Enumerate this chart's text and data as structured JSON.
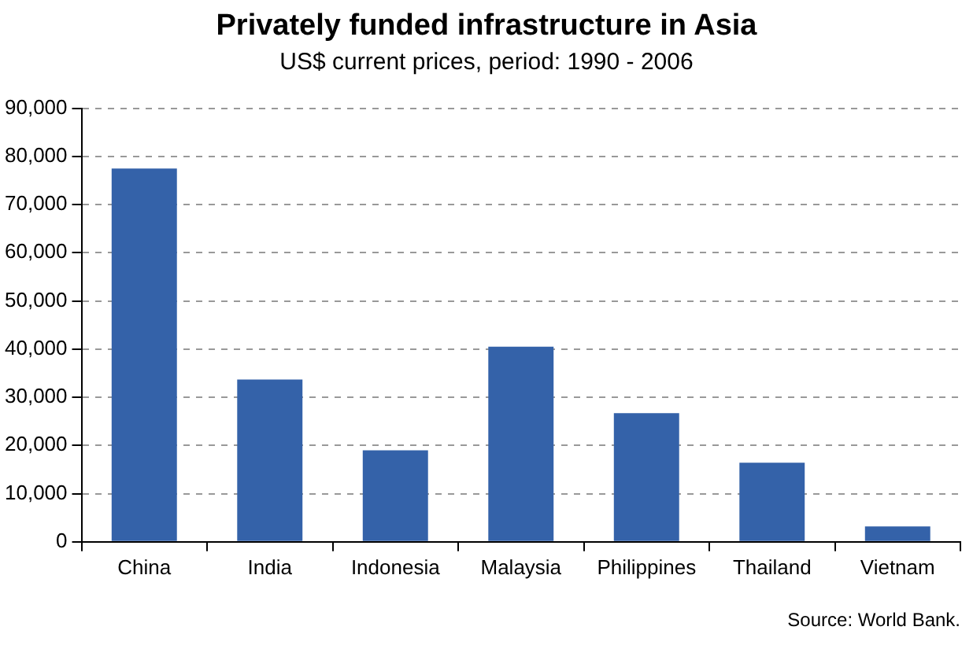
{
  "chart_data": {
    "type": "bar",
    "title": "Privately funded infrastructure in Asia",
    "subtitle": "US$ current prices, period: 1990 - 2006",
    "categories": [
      "China",
      "India",
      "Indonesia",
      "Malaysia",
      "Philippines",
      "Thailand",
      "Vietnam"
    ],
    "values": [
      77500,
      33700,
      19000,
      40500,
      26700,
      16400,
      3200
    ],
    "color": "#3462a9",
    "ylim": [
      0,
      90000
    ],
    "yticks": [
      0,
      {
        "value": 10000,
        "label": "10,000"
      },
      {
        "value": 20000,
        "label": "20,000"
      },
      {
        "value": 30000,
        "label": "30,000"
      },
      {
        "value": 40000,
        "label": "40,000"
      },
      {
        "value": 50000,
        "label": "50,000"
      },
      {
        "value": 60000,
        "label": "60,000"
      },
      {
        "value": 70000,
        "label": "70,000"
      },
      {
        "value": 80000,
        "label": "80,000"
      },
      {
        "value": 90000,
        "label": "90,000"
      }
    ],
    "grid": "y",
    "annotations": [
      "Source: World Bank."
    ]
  }
}
